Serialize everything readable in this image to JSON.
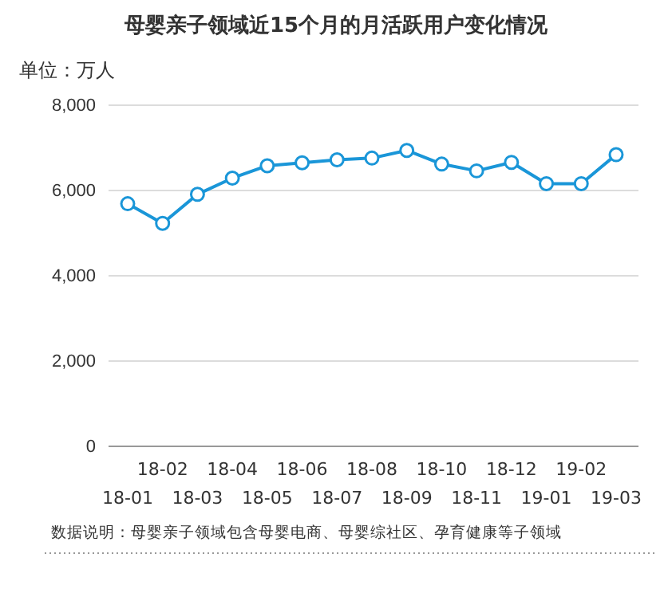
{
  "chart_data": {
    "type": "line",
    "title": "母婴亲子领域近15个月的月活跃用户变化情况",
    "ylabel": "单位：万人",
    "categories": [
      "18-01",
      "18-02",
      "18-03",
      "18-04",
      "18-05",
      "18-06",
      "18-07",
      "18-08",
      "18-09",
      "18-10",
      "18-11",
      "18-12",
      "19-01",
      "19-02",
      "19-03"
    ],
    "series": [
      {
        "color": "#1a96d8",
        "values": [
          5690,
          5230,
          5910,
          6290,
          6580,
          6650,
          6720,
          6760,
          6940,
          6620,
          6460,
          6660,
          6160,
          6160,
          6840
        ]
      }
    ],
    "ylim": [
      0,
      8000
    ],
    "yticks": [
      {
        "value": 0,
        "label": "0"
      },
      {
        "value": 2000,
        "label": "2,000"
      },
      {
        "value": 4000,
        "label": "4,000"
      },
      {
        "value": 6000,
        "label": "6,000"
      },
      {
        "value": 8000,
        "label": "8,000"
      }
    ],
    "grid": "y",
    "marker": "circle",
    "line_style": "solid",
    "annotations": [
      "数据说明：母婴亲子领域包含母婴电商、母婴综社区、孕育健康等子领域"
    ]
  }
}
